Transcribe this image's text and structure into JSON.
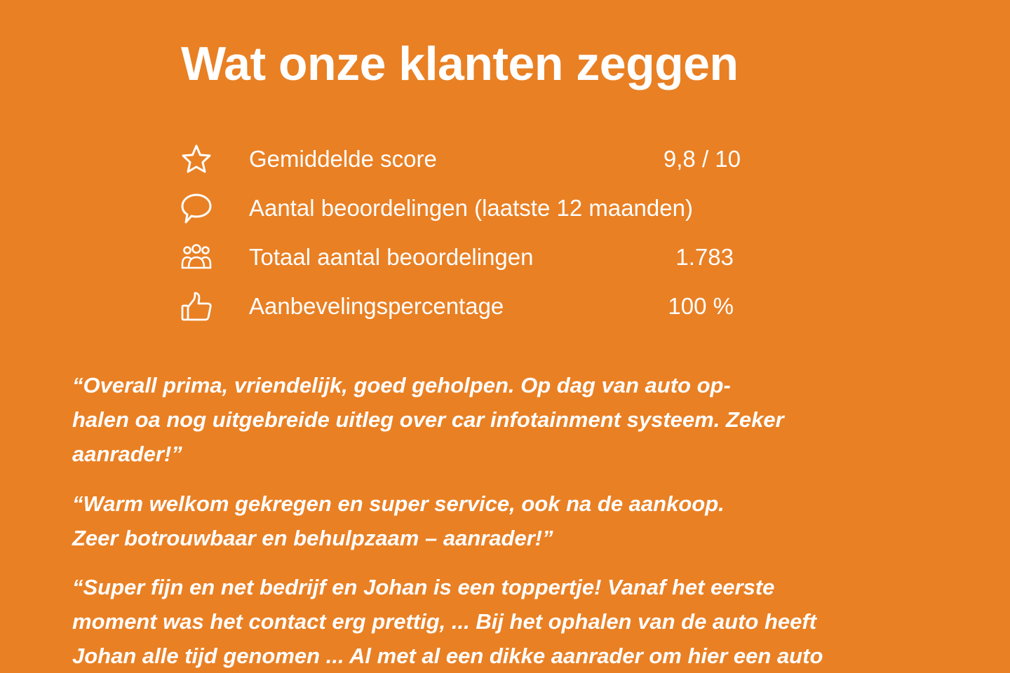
{
  "title": "Wat onze klanten zeggen",
  "stats": [
    {
      "icon": "star-icon",
      "label": "Gemiddelde score",
      "value": "9,8 / 10"
    },
    {
      "icon": "speech-bubble-icon",
      "label": "Aantal beoordelingen (laatste 12 maanden)",
      "value": ""
    },
    {
      "icon": "people-icon",
      "label": "Totaal aantal beoordelingen",
      "value": "1.783"
    },
    {
      "icon": "thumbs-up-icon",
      "label": "Aanbevelingspercentage",
      "value": "100 %"
    }
  ],
  "quotes": [
    {
      "lines": [
        "“Overall prima, vriendelijk, goed geholpen. Op dag van auto op-",
        "halen oa nog uitgebreide uitleg over car infotainment systeem.  Zeker",
        "aanrader!”"
      ]
    },
    {
      "lines": [
        "“Warm welkom gekregen en super service, ook na de aankoop.",
        "Zeer botrouwbaar en behulpzaam – aanrader!”"
      ]
    },
    {
      "lines": [
        "“Super fijn en net bedrijf en Johan is een toppertje! Vanaf het eerste",
        "moment was het contact erg prettig, ... Bij het ophalen van de auto heeft",
        "Johan alle tijd genomen ... Al met al een dikke aanrader om hier een auto"
      ]
    }
  ],
  "colors": {
    "background": "#E98024",
    "text": "#FFFFFF"
  }
}
